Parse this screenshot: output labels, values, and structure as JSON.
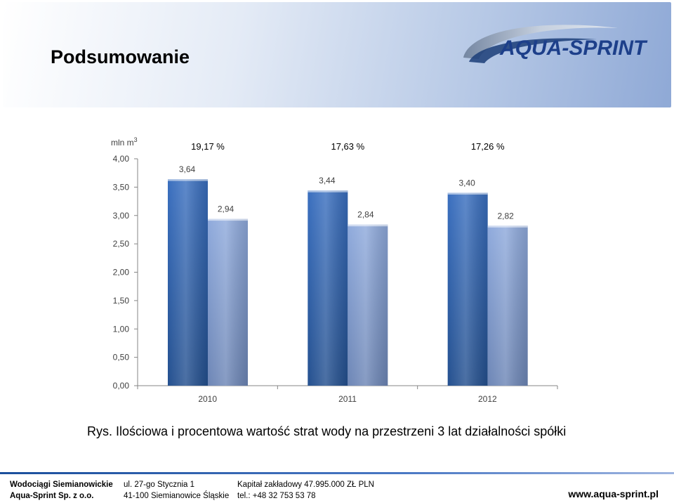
{
  "header": {
    "title": "Podsumowanie",
    "logo_text": "AQUA-SPRINT"
  },
  "chart_data": {
    "type": "bar",
    "ylabel": "mln m",
    "ylabel_sup": "3",
    "categories": [
      "2010",
      "2011",
      "2012"
    ],
    "series": [
      {
        "values": [
          3.64,
          3.44,
          3.4
        ],
        "labels": [
          "3,64",
          "3,44",
          "3,40"
        ],
        "color": "#3a6fbf"
      },
      {
        "values": [
          2.94,
          2.84,
          2.82
        ],
        "labels": [
          "2,94",
          "2,84",
          "2,82"
        ],
        "color": "#8faadc"
      }
    ],
    "percentages": [
      "19,17 %",
      "17,63 %",
      "17,26 %"
    ],
    "ylim": [
      0,
      4
    ],
    "yticks": [
      0,
      0.5,
      1,
      1.5,
      2,
      2.5,
      3,
      3.5,
      4
    ],
    "ytick_labels": [
      "0,00",
      "0,50",
      "1,00",
      "1,50",
      "2,00",
      "2,50",
      "3,00",
      "3,50",
      "4,00"
    ],
    "grid": false,
    "legend": "none"
  },
  "caption": "Rys. Ilościowa i procentowa wartość strat wody na przestrzeni 3 lat działalności spółki",
  "footer": {
    "col1": [
      "Wodociągi Siemianowickie",
      "Aqua-Sprint Sp. z o.o."
    ],
    "col2": [
      "ul. 27-go Stycznia 1",
      "41-100 Siemianowice Śląskie"
    ],
    "col3": [
      "Kapitał zakładowy  47.995.000 ZŁ PLN",
      "tel.: +48 32 753 53 78"
    ],
    "website": "www.aqua-sprint.pl"
  }
}
